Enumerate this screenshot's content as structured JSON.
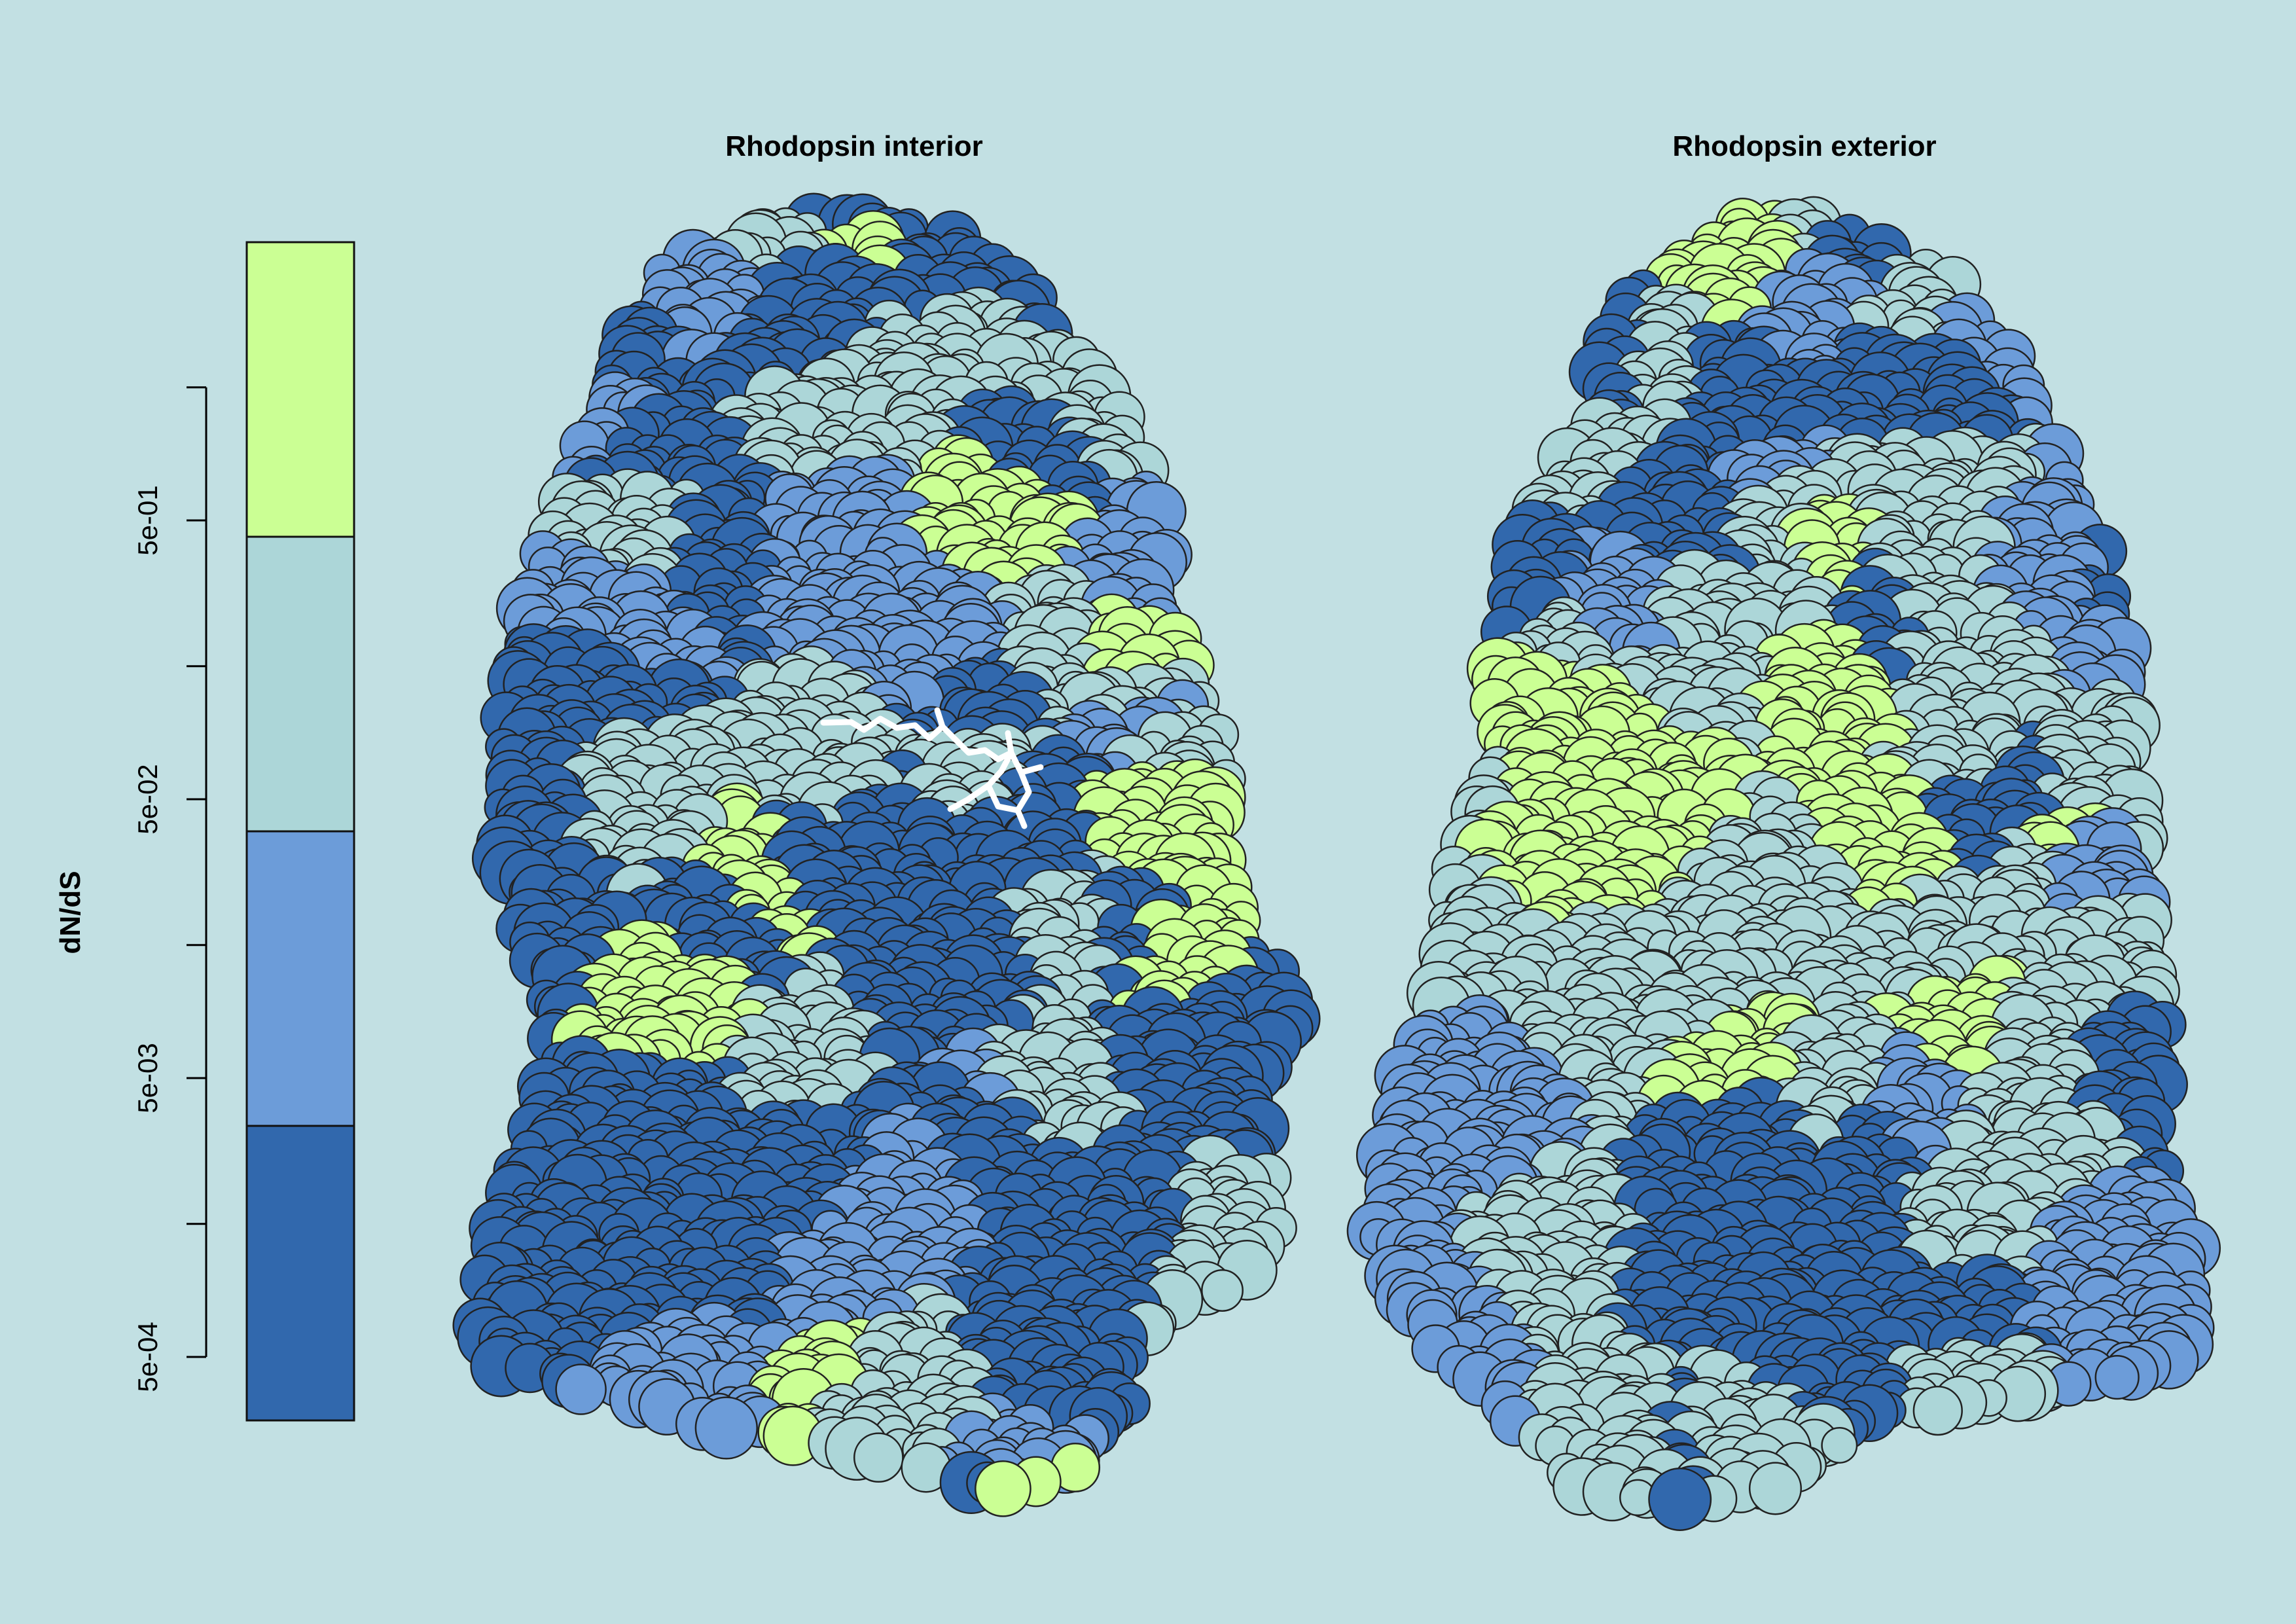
{
  "chart_data": {
    "type": "heatmap",
    "colorbar": {
      "title": "dN/dS",
      "scale": "log",
      "tick_labels": [
        "5e-01",
        "5e-02",
        "5e-03",
        "5e-04"
      ],
      "tick_values": [
        0.5,
        0.05,
        0.005,
        0.0005
      ],
      "bins": [
        {
          "color": "#cbff94"
        },
        {
          "color": "#acd6d8"
        },
        {
          "color": "#6c9cd9"
        },
        {
          "color": "#3168ad"
        }
      ]
    },
    "panels": [
      {
        "title": "Rhodopsin interior",
        "ligand_shown": true
      },
      {
        "title": "Rhodopsin exterior",
        "ligand_shown": false
      }
    ]
  },
  "colors": {
    "background": "#c2e0e3",
    "outline": "#222222",
    "ligand": "#ffffff"
  }
}
